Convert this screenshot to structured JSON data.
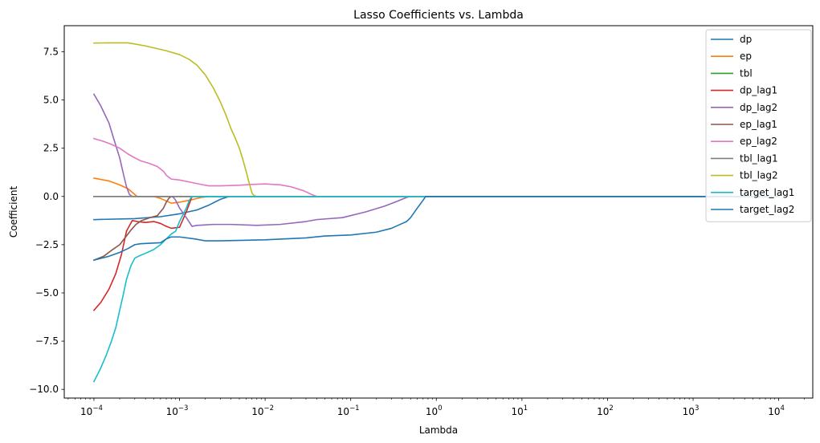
{
  "chart_data": {
    "type": "line",
    "title": "Lasso Coefficients vs. Lambda",
    "xlabel": "Lambda",
    "ylabel": "Coefficient",
    "x_scale": "log",
    "xlim": [
      4.5e-05,
      25000
    ],
    "ylim": [
      -10.45,
      8.85
    ],
    "x_ticks": [
      {
        "value": 0.0001,
        "mant": "10",
        "exp": "−4"
      },
      {
        "value": 0.001,
        "mant": "10",
        "exp": "−3"
      },
      {
        "value": 0.01,
        "mant": "10",
        "exp": "−2"
      },
      {
        "value": 0.1,
        "mant": "10",
        "exp": "−1"
      },
      {
        "value": 1,
        "mant": "10",
        "exp": "0"
      },
      {
        "value": 10,
        "mant": "10",
        "exp": "1"
      },
      {
        "value": 100,
        "mant": "10",
        "exp": "2"
      },
      {
        "value": 1000,
        "mant": "10",
        "exp": "3"
      },
      {
        "value": 10000,
        "mant": "10",
        "exp": "4"
      }
    ],
    "y_ticks": [
      {
        "value": 7.5,
        "label": "7.5"
      },
      {
        "value": 5.0,
        "label": "5.0"
      },
      {
        "value": 2.5,
        "label": "2.5"
      },
      {
        "value": 0.0,
        "label": "0.0"
      },
      {
        "value": -2.5,
        "label": "−2.5"
      },
      {
        "value": -5.0,
        "label": "−5.0"
      },
      {
        "value": -7.5,
        "label": "−7.5"
      },
      {
        "value": -10.0,
        "label": "−10.0"
      }
    ],
    "grid": false,
    "legend_position": "top-right",
    "series": [
      {
        "name": "dp",
        "color": "#1f77b4",
        "points": [
          [
            0.0001,
            -1.2
          ],
          [
            0.0003,
            -1.15
          ],
          [
            0.0006,
            -1.05
          ],
          [
            0.001,
            -0.9
          ],
          [
            0.0016,
            -0.7
          ],
          [
            0.0022,
            -0.45
          ],
          [
            0.003,
            -0.15
          ],
          [
            0.0038,
            0
          ],
          [
            10000,
            0
          ]
        ]
      },
      {
        "name": "ep",
        "color": "#ff7f0e",
        "points": [
          [
            0.0001,
            0.95
          ],
          [
            0.00015,
            0.8
          ],
          [
            0.0002,
            0.6
          ],
          [
            0.00025,
            0.4
          ],
          [
            0.0003,
            0.1
          ],
          [
            0.00032,
            0
          ],
          [
            0.0005,
            0
          ],
          [
            0.0006,
            -0.1
          ],
          [
            0.0008,
            -0.35
          ],
          [
            0.001,
            -0.3
          ],
          [
            0.0013,
            -0.2
          ],
          [
            0.0018,
            -0.05
          ],
          [
            0.0022,
            0
          ],
          [
            10000,
            0
          ]
        ]
      },
      {
        "name": "tbl",
        "color": "#2ca02c",
        "points": [
          [
            0.0001,
            0
          ],
          [
            10000,
            0
          ]
        ]
      },
      {
        "name": "dp_lag1",
        "color": "#d62728",
        "points": [
          [
            0.0001,
            -5.9
          ],
          [
            0.00012,
            -5.5
          ],
          [
            0.00015,
            -4.8
          ],
          [
            0.00018,
            -4.0
          ],
          [
            0.00021,
            -3.0
          ],
          [
            0.00024,
            -1.8
          ],
          [
            0.00028,
            -1.25
          ],
          [
            0.00032,
            -1.3
          ],
          [
            0.0004,
            -1.35
          ],
          [
            0.0005,
            -1.3
          ],
          [
            0.0006,
            -1.4
          ],
          [
            0.0007,
            -1.55
          ],
          [
            0.0008,
            -1.65
          ],
          [
            0.001,
            -1.6
          ],
          [
            0.0012,
            -0.8
          ],
          [
            0.0014,
            0
          ],
          [
            10000,
            0
          ]
        ]
      },
      {
        "name": "dp_lag2",
        "color": "#9467bd",
        "points": [
          [
            0.0001,
            5.3
          ],
          [
            0.00012,
            4.7
          ],
          [
            0.00015,
            3.8
          ],
          [
            0.00017,
            3.0
          ],
          [
            0.0002,
            2.0
          ],
          [
            0.00022,
            1.2
          ],
          [
            0.00024,
            0.5
          ],
          [
            0.00026,
            0.1
          ],
          [
            0.00028,
            0
          ],
          [
            0.0008,
            0
          ],
          [
            0.00085,
            -0.05
          ],
          [
            0.0009,
            -0.2
          ],
          [
            0.001,
            -0.6
          ],
          [
            0.0012,
            -1.1
          ],
          [
            0.0014,
            -1.55
          ],
          [
            0.0016,
            -1.5
          ],
          [
            0.0025,
            -1.45
          ],
          [
            0.004,
            -1.45
          ],
          [
            0.008,
            -1.5
          ],
          [
            0.015,
            -1.45
          ],
          [
            0.03,
            -1.3
          ],
          [
            0.04,
            -1.2
          ],
          [
            0.08,
            -1.1
          ],
          [
            0.15,
            -0.8
          ],
          [
            0.25,
            -0.5
          ],
          [
            0.35,
            -0.25
          ],
          [
            0.45,
            -0.05
          ],
          [
            0.5,
            0
          ],
          [
            10000,
            0
          ]
        ]
      },
      {
        "name": "ep_lag1",
        "color": "#8c564b",
        "points": [
          [
            0.0001,
            -3.3
          ],
          [
            0.00013,
            -3.1
          ],
          [
            0.00016,
            -2.8
          ],
          [
            0.0002,
            -2.5
          ],
          [
            0.00023,
            -2.15
          ],
          [
            0.00027,
            -1.75
          ],
          [
            0.00031,
            -1.45
          ],
          [
            0.00036,
            -1.25
          ],
          [
            0.00045,
            -1.1
          ],
          [
            0.00055,
            -1.0
          ],
          [
            0.00065,
            -0.6
          ],
          [
            0.0007,
            -0.3
          ],
          [
            0.00075,
            -0.1
          ],
          [
            0.0008,
            0
          ],
          [
            10000,
            0
          ]
        ]
      },
      {
        "name": "ep_lag2",
        "color": "#e377c2",
        "points": [
          [
            0.0001,
            3.0
          ],
          [
            0.00013,
            2.85
          ],
          [
            0.00016,
            2.7
          ],
          [
            0.0002,
            2.5
          ],
          [
            0.00025,
            2.2
          ],
          [
            0.0003,
            2.0
          ],
          [
            0.00035,
            1.85
          ],
          [
            0.00045,
            1.7
          ],
          [
            0.00055,
            1.55
          ],
          [
            0.00065,
            1.3
          ],
          [
            0.0007,
            1.1
          ],
          [
            0.0008,
            0.9
          ],
          [
            0.001,
            0.85
          ],
          [
            0.0013,
            0.75
          ],
          [
            0.0018,
            0.62
          ],
          [
            0.0022,
            0.55
          ],
          [
            0.003,
            0.55
          ],
          [
            0.005,
            0.58
          ],
          [
            0.007,
            0.62
          ],
          [
            0.01,
            0.65
          ],
          [
            0.015,
            0.6
          ],
          [
            0.02,
            0.5
          ],
          [
            0.028,
            0.3
          ],
          [
            0.035,
            0.1
          ],
          [
            0.04,
            0
          ],
          [
            10000,
            0
          ]
        ]
      },
      {
        "name": "tbl_lag1",
        "color": "#7f7f7f",
        "points": [
          [
            0.0001,
            0
          ],
          [
            10000,
            0
          ]
        ]
      },
      {
        "name": "tbl_lag2",
        "color": "#bcbd22",
        "points": [
          [
            0.0001,
            7.95
          ],
          [
            0.00015,
            7.96
          ],
          [
            0.0002,
            7.96
          ],
          [
            0.00025,
            7.96
          ],
          [
            0.0003,
            7.9
          ],
          [
            0.0004,
            7.8
          ],
          [
            0.0005,
            7.7
          ],
          [
            0.0007,
            7.55
          ],
          [
            0.001,
            7.35
          ],
          [
            0.0013,
            7.1
          ],
          [
            0.0016,
            6.8
          ],
          [
            0.002,
            6.3
          ],
          [
            0.0025,
            5.6
          ],
          [
            0.003,
            4.9
          ],
          [
            0.0035,
            4.2
          ],
          [
            0.004,
            3.5
          ],
          [
            0.0045,
            3.0
          ],
          [
            0.005,
            2.5
          ],
          [
            0.0055,
            1.9
          ],
          [
            0.006,
            1.3
          ],
          [
            0.0065,
            0.7
          ],
          [
            0.007,
            0.2
          ],
          [
            0.0072,
            0.1
          ],
          [
            0.0078,
            0
          ],
          [
            10000,
            0
          ]
        ]
      },
      {
        "name": "target_lag1",
        "color": "#17becf",
        "points": [
          [
            0.0001,
            -9.6
          ],
          [
            0.00012,
            -8.9
          ],
          [
            0.00014,
            -8.2
          ],
          [
            0.00016,
            -7.5
          ],
          [
            0.00018,
            -6.8
          ],
          [
            0.0002,
            -5.9
          ],
          [
            0.00022,
            -5.1
          ],
          [
            0.00024,
            -4.3
          ],
          [
            0.00027,
            -3.6
          ],
          [
            0.0003,
            -3.2
          ],
          [
            0.00035,
            -3.05
          ],
          [
            0.0004,
            -2.95
          ],
          [
            0.0005,
            -2.75
          ],
          [
            0.0006,
            -2.5
          ],
          [
            0.0007,
            -2.2
          ],
          [
            0.0008,
            -1.95
          ],
          [
            0.0009,
            -1.8
          ],
          [
            0.001,
            -1.3
          ],
          [
            0.0012,
            -0.6
          ],
          [
            0.0013,
            -0.2
          ],
          [
            0.0014,
            0
          ],
          [
            10000,
            0
          ]
        ]
      },
      {
        "name": "target_lag2",
        "color": "#1f77b4",
        "points": [
          [
            0.0001,
            -3.3
          ],
          [
            0.00015,
            -3.1
          ],
          [
            0.0002,
            -2.9
          ],
          [
            0.00025,
            -2.7
          ],
          [
            0.0003,
            -2.5
          ],
          [
            0.00035,
            -2.45
          ],
          [
            0.0006,
            -2.4
          ],
          [
            0.0007,
            -2.2
          ],
          [
            0.0008,
            -2.1
          ],
          [
            0.001,
            -2.1
          ],
          [
            0.0015,
            -2.2
          ],
          [
            0.002,
            -2.3
          ],
          [
            0.003,
            -2.3
          ],
          [
            0.01,
            -2.25
          ],
          [
            0.03,
            -2.15
          ],
          [
            0.05,
            -2.05
          ],
          [
            0.1,
            -2.0
          ],
          [
            0.2,
            -1.85
          ],
          [
            0.3,
            -1.65
          ],
          [
            0.4,
            -1.4
          ],
          [
            0.45,
            -1.3
          ],
          [
            0.5,
            -1.1
          ],
          [
            0.6,
            -0.6
          ],
          [
            0.7,
            -0.2
          ],
          [
            0.75,
            0
          ],
          [
            10000,
            0
          ]
        ]
      }
    ]
  }
}
